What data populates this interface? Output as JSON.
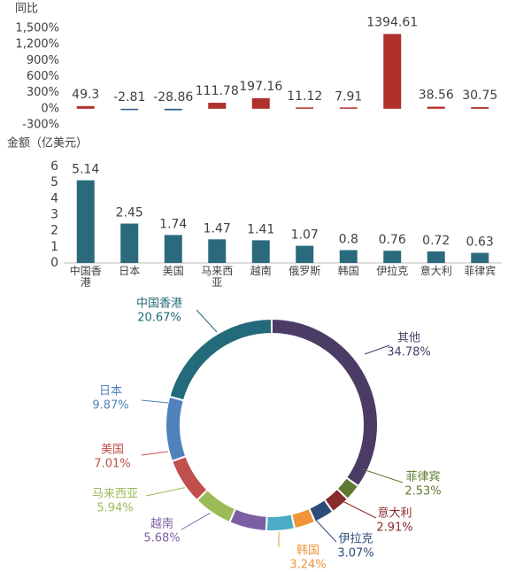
{
  "chart_data": [
    {
      "type": "bar",
      "title": "同比",
      "values": [
        49.3,
        -2.81,
        -28.86,
        111.78,
        197.16,
        11.12,
        7.91,
        1394.61,
        38.56,
        30.75
      ],
      "color_positive": "#b0302c",
      "color_negative": "#2f5d8c",
      "ylim": [
        -300,
        1500
      ],
      "yticks": [
        {
          "value": -300,
          "label": "-300%"
        },
        {
          "value": 0,
          "label": "0%"
        },
        {
          "value": 300,
          "label": "300%"
        },
        {
          "value": 600,
          "label": "600%"
        },
        {
          "value": 900,
          "label": "900%"
        },
        {
          "value": 1200,
          "label": "1,200%"
        },
        {
          "value": 1500,
          "label": "1,500%"
        }
      ]
    },
    {
      "type": "bar",
      "title": "金额（亿美元）",
      "categories": [
        "中国香港",
        "日本",
        "美国",
        "马来西亚",
        "越南",
        "俄罗斯",
        "韩国",
        "伊拉克",
        "意大利",
        "菲律宾"
      ],
      "values": [
        5.14,
        2.45,
        1.74,
        1.47,
        1.41,
        1.07,
        0.8,
        0.76,
        0.72,
        0.63
      ],
      "color": "#2b6a7d",
      "ylim": [
        0,
        6
      ],
      "yticks": [
        0,
        1,
        2,
        3,
        4,
        5,
        6
      ]
    },
    {
      "type": "donut",
      "categories": [
        "其他",
        "菲律宾",
        "意大利",
        "伊拉克",
        "韩国",
        null,
        "越南",
        "马来西亚",
        "美国",
        "日本",
        "中国香港"
      ],
      "values": [
        34.78,
        2.53,
        2.91,
        3.07,
        3.24,
        4.3,
        5.68,
        5.94,
        7.01,
        9.87,
        20.67
      ],
      "value_labels": [
        "34.78%",
        "2.53%",
        "2.91%",
        "3.07%",
        "3.24%",
        null,
        "5.68%",
        "5.94%",
        "7.01%",
        "9.87%",
        "20.67%"
      ],
      "colors": [
        "#4b3c66",
        "#5e7a2e",
        "#8a2b2b",
        "#2d4b7a",
        "#f0953a",
        "#4bacc6",
        "#7b5fa3",
        "#9bbb59",
        "#c0504d",
        "#4f81bd",
        "#236a7b"
      ]
    }
  ]
}
